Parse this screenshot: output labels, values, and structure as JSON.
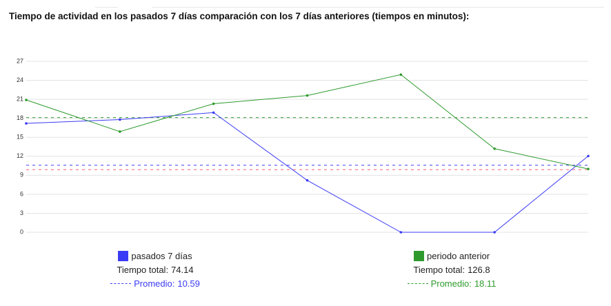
{
  "chart_data": {
    "type": "line",
    "title": "Tiempo de actividad en los pasados 7 días comparación con los 7 días anteriores (tiempos en minutos):",
    "categories": [
      null,
      null,
      null,
      null,
      null,
      null,
      null
    ],
    "series": [
      {
        "name": "pasados 7 días",
        "color": "#3b3bf5",
        "values": [
          17.2,
          17.8,
          18.9,
          8.2,
          0,
          0,
          12.04
        ],
        "total_label": "Tiempo total:",
        "total": 74.14,
        "average_label": "Promedio:",
        "average": 10.59
      },
      {
        "name": "periodo anterior",
        "color": "#2e9a2e",
        "values": [
          20.9,
          15.9,
          20.3,
          21.6,
          24.9,
          13.2,
          10.0
        ],
        "total_label": "Tiempo total:",
        "total": 126.8,
        "average_label": "Promedio:",
        "average": 18.11
      }
    ],
    "reference_lines": [
      {
        "value": 9.9,
        "color": "#f06060"
      }
    ],
    "ylim": [
      0,
      27
    ],
    "yticks": [
      0,
      3,
      6,
      9,
      12,
      15,
      18,
      21,
      24,
      27
    ],
    "grid": true
  }
}
